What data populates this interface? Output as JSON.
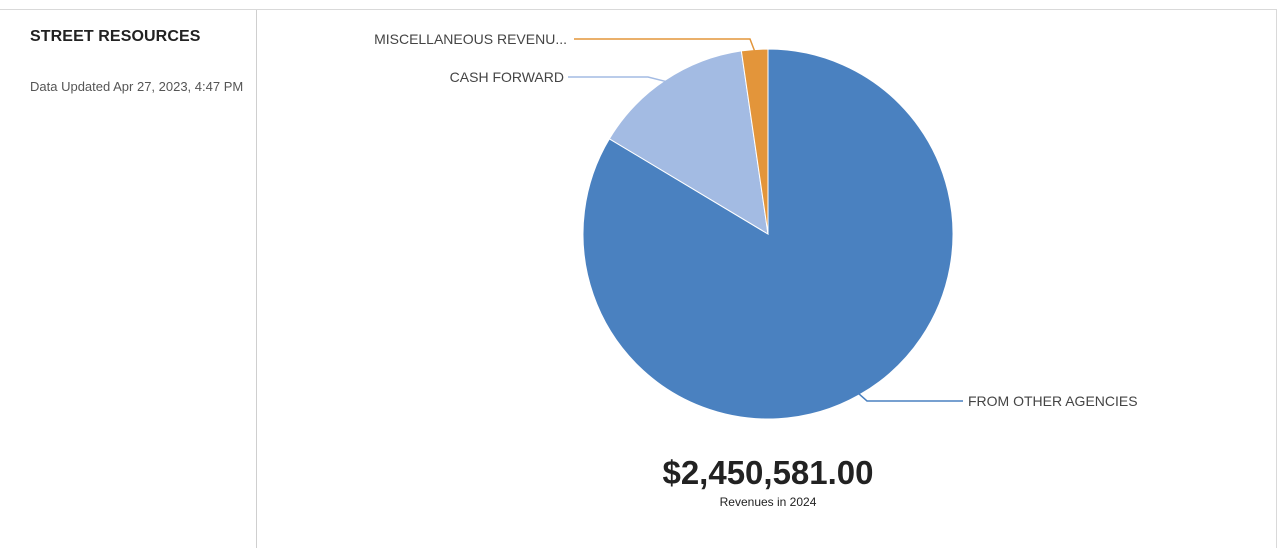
{
  "sidebar": {
    "title": "STREET RESOURCES",
    "updated": "Data Updated Apr 27, 2023, 4:47 PM"
  },
  "summary": {
    "total": "$2,450,581.00",
    "caption": "Revenues in 2024"
  },
  "chart_data": {
    "type": "pie",
    "slices": [
      {
        "label": "FROM OTHER AGENCIES",
        "fraction": 0.836,
        "color": "#4a81c0"
      },
      {
        "label": "CASH FORWARD",
        "fraction": 0.141,
        "color": "#a3bbe3"
      },
      {
        "label": "MISCELLANEOUS REVENU...",
        "fraction": 0.023,
        "color": "#e3953a"
      }
    ],
    "start": "12 o'clock",
    "direction": "clockwise",
    "legend": "callout labels"
  }
}
